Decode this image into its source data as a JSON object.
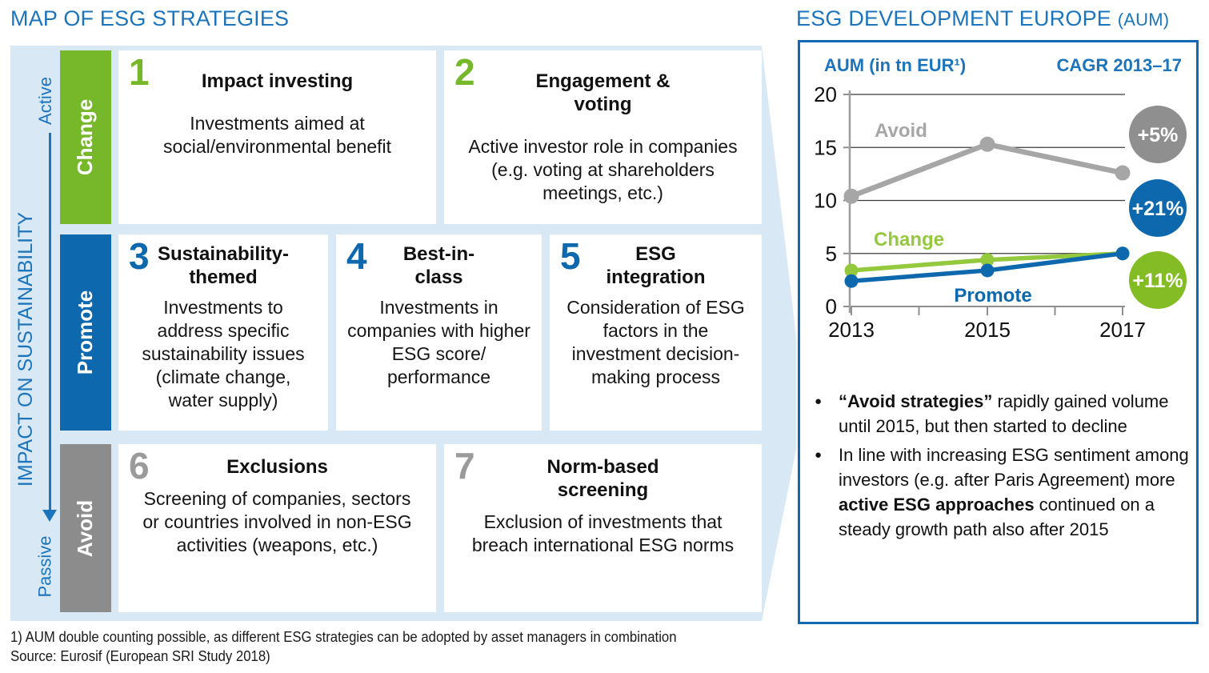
{
  "slide": {
    "left_section": {
      "title": "MAP OF ESG STRATEGIES",
      "impact_axis": {
        "top_label": "Active",
        "bottom_label": "Passive",
        "axis_label": "IMPACT ON SUSTAINABILITY"
      },
      "groups": [
        {
          "label": "Change",
          "color": "#76B82A"
        },
        {
          "label": "Promote",
          "color": "#0E68AE"
        },
        {
          "label": "Avoid",
          "color": "#8C8C8C"
        }
      ],
      "cards": [
        {
          "num": "1",
          "group": "Change",
          "num_color": "#76B82A",
          "title": "Impact investing",
          "desc": "Investments aimed at\nsocial/environmental benefit"
        },
        {
          "num": "2",
          "group": "Change",
          "num_color": "#76B82A",
          "title": "Engagement &\nvoting",
          "desc": "Active investor role in companies\n(e.g. voting at shareholders\nmeetings, etc.)"
        },
        {
          "num": "3",
          "group": "Promote",
          "num_color": "#0E68AE",
          "title": "Sustainability-\nthemed",
          "desc": "Investments to\naddress specific\nsustainability issues\n(climate change,\nwater supply)"
        },
        {
          "num": "4",
          "group": "Promote",
          "num_color": "#0E68AE",
          "title": "Best-in-\nclass",
          "desc": "Investments in\ncompanies with higher\nESG score/\nperformance"
        },
        {
          "num": "5",
          "group": "Promote",
          "num_color": "#0E68AE",
          "title": "ESG\nintegration",
          "desc": "Consideration of ESG\nfactors in the\ninvestment decision-\nmaking process"
        },
        {
          "num": "6",
          "group": "Avoid",
          "num_color": "#9A9A9A",
          "title": "Exclusions",
          "desc": "Screening of companies, sectors\nor countries involved in non-ESG\nactivities (weapons, etc.)"
        },
        {
          "num": "7",
          "group": "Avoid",
          "num_color": "#9A9A9A",
          "title": "Norm-based\nscreening",
          "desc": "Exclusion of investments that\nbreach international ESG norms"
        }
      ]
    },
    "right_section": {
      "title": "ESG DEVELOPMENT EUROPE",
      "title_suffix": "(AUM)",
      "chart_header": {
        "left": "AUM (in tn EUR¹)",
        "right": "CAGR 2013–17"
      },
      "chart_data": {
        "type": "line",
        "title": "ESG DEVELOPMENT EUROPE (AUM)",
        "xlabel": "",
        "ylabel": "AUM (in tn EUR¹)",
        "x": [
          "2013",
          "2015",
          "2017"
        ],
        "x_minor_ticks": [
          "2014",
          "2016"
        ],
        "ylim": [
          0,
          20
        ],
        "yticks": [
          0,
          5,
          10,
          15,
          20
        ],
        "grid": true,
        "legend_position": "inline-labels",
        "series": [
          {
            "name": "Avoid",
            "values": [
              10.4,
              15.3,
              12.6
            ],
            "color": "#A6A6A6",
            "cagr": "+5%",
            "cagr_color": "#8F8F8F"
          },
          {
            "name": "Promote",
            "values": [
              2.4,
              3.4,
              5.0
            ],
            "color": "#0E68AE",
            "cagr": "+21%",
            "cagr_color": "#0E68AE"
          },
          {
            "name": "Change",
            "values": [
              3.4,
              4.4,
              5.0
            ],
            "color": "#94C93D",
            "cagr": "+11%",
            "cagr_color": "#84BC26"
          }
        ]
      },
      "bullets": [
        {
          "segments": [
            {
              "text": "“Avoid strategies”",
              "bold": true
            },
            {
              "text": " rapidly gained volume until 2015, but then started to decline",
              "bold": false
            }
          ]
        },
        {
          "segments": [
            {
              "text": "In line with increasing ESG sentiment among investors (e.g. after Paris Agreement) more ",
              "bold": false
            },
            {
              "text": "active ESG approaches",
              "bold": true
            },
            {
              "text": " continued on a steady growth path also after 2015",
              "bold": false
            }
          ]
        }
      ],
      "panel_border_color": "#1268B3"
    },
    "footnotes": [
      "1) AUM double counting possible, as different ESG strategies can be adopted by asset managers in combination",
      "Source: Eurosif (European SRI Study 2018)"
    ],
    "colors": {
      "title_blue": "#1C75BC",
      "panel_bg": "#D9E8F5"
    }
  }
}
